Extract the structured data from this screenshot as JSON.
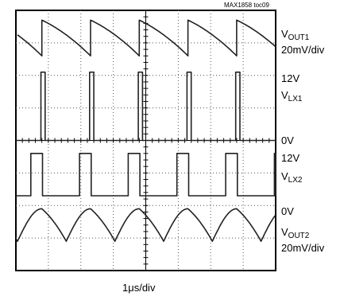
{
  "figure_id": "MAX1858 toc09",
  "chart_data": {
    "type": "line",
    "time_scale": "1μs/div",
    "grid": true,
    "divisions": {
      "x": 8,
      "y": 8
    },
    "annotations": [
      "MAX1858 toc09"
    ],
    "channels": [
      {
        "name": "VOUT1",
        "label": {
          "base": "V",
          "sub": "OUT1"
        },
        "scale": "20mV/div",
        "waveform": "sawtooth",
        "levels": {
          "high_div": 7.7,
          "low_div": 6.6
        },
        "period_div": 1.5,
        "first_edge_div": 0.8
      },
      {
        "name": "VLX1",
        "label": {
          "base": "V",
          "sub": "LX1"
        },
        "top_level": "12V",
        "bottom_level": "0V",
        "waveform": "pulse",
        "levels": {
          "high_div": 6.1,
          "low_div": 4.0
        },
        "period_div": 1.5,
        "first_edge_div": 0.77,
        "pulse_width_div": 0.13
      },
      {
        "name": "VLX2",
        "label": {
          "base": "V",
          "sub": "LX2"
        },
        "top_level": "12V",
        "bottom_level": "0V",
        "waveform": "pulse",
        "levels": {
          "high_div": 3.6,
          "low_div": 2.3
        },
        "period_div": 1.5,
        "first_edge_div": 0.46,
        "pulse_width_div": 0.36
      },
      {
        "name": "VOUT2",
        "label": {
          "base": "V",
          "sub": "OUT2"
        },
        "scale": "20mV/div",
        "waveform": "sawtooth",
        "levels": {
          "high_div": 1.9,
          "low_div": 0.9
        },
        "period_div": 1.5,
        "first_edge_div": 0.05,
        "rising_fraction": 0.5
      }
    ]
  }
}
